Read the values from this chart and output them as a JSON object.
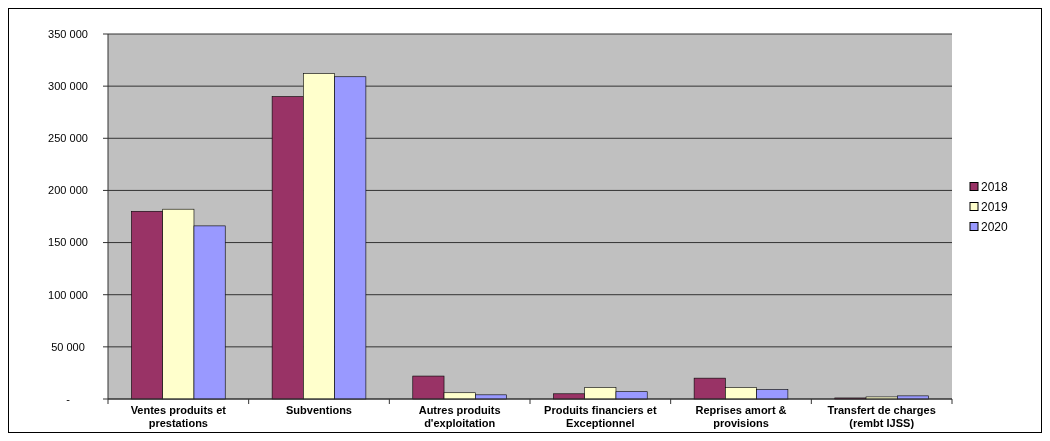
{
  "chart_data": {
    "type": "bar",
    "categories": [
      "Ventes produits et prestations",
      "Subventions",
      "Autres produits d'exploitation",
      "Produits financiers et Exceptionnel",
      "Reprises amort & provisions",
      "Transfert de charges (rembt IJSS)"
    ],
    "series": [
      {
        "name": "2018",
        "color": "#993366",
        "values": [
          180000,
          290000,
          22000,
          5000,
          20000,
          1000
        ]
      },
      {
        "name": "2019",
        "color": "#ffffcc",
        "values": [
          182000,
          312000,
          6000,
          11000,
          11000,
          2000
        ]
      },
      {
        "name": "2020",
        "color": "#9999ff",
        "values": [
          166000,
          309000,
          4000,
          7000,
          9000,
          3000
        ]
      }
    ],
    "ylim": [
      0,
      350000
    ],
    "yticks": [
      {
        "value": 0,
        "label": "-"
      },
      {
        "value": 50000,
        "label": "50 000"
      },
      {
        "value": 100000,
        "label": "100 000"
      },
      {
        "value": 150000,
        "label": "150 000"
      },
      {
        "value": 200000,
        "label": "200 000"
      },
      {
        "value": 250000,
        "label": "250 000"
      },
      {
        "value": 300000,
        "label": "300 000"
      },
      {
        "value": 350000,
        "label": "350 000"
      }
    ],
    "grid": "y",
    "legend": "right"
  }
}
